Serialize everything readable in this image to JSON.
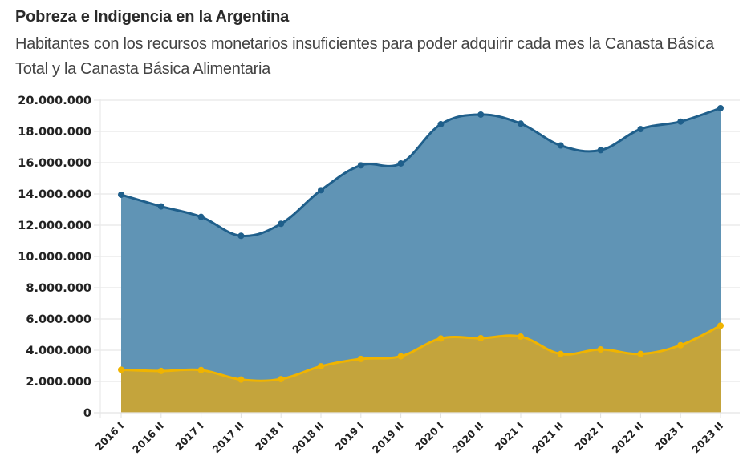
{
  "chart_data": {
    "type": "area",
    "title": "Pobreza e Indigencia en la Argentina",
    "subtitle": "Habitantes con los recursos monetarios insuficientes para poder adquirir cada mes la Canasta Básica Total y la Canasta Básica Alimentaria",
    "xlabel": "",
    "ylabel": "",
    "ylim": [
      0,
      20000000
    ],
    "yticks": [
      0,
      2000000,
      4000000,
      6000000,
      8000000,
      10000000,
      12000000,
      14000000,
      16000000,
      18000000,
      20000000
    ],
    "ytick_labels": [
      "0",
      "2.000.000",
      "4.000.000",
      "6.000.000",
      "8.000.000",
      "10.000.000",
      "12.000.000",
      "14.000.000",
      "16.000.000",
      "18.000.000",
      "20.000.000"
    ],
    "grid": true,
    "legend": "none",
    "categories": [
      "2016 I",
      "2016 II",
      "2017 I",
      "2017 II",
      "2018 I",
      "2018 II",
      "2019 I",
      "2019 II",
      "2020 I",
      "2020 II",
      "2021 I",
      "2021 II",
      "2022 I",
      "2022 II",
      "2023 I",
      "2023 II"
    ],
    "series": [
      {
        "name": "Pobreza",
        "color": "#1f5f8b",
        "fill": "#6094b5",
        "values": [
          13950000,
          13200000,
          12530000,
          11320000,
          12090000,
          14240000,
          15830000,
          15950000,
          18460000,
          19080000,
          18500000,
          17100000,
          16800000,
          18150000,
          18630000,
          19490000
        ]
      },
      {
        "name": "Indigencia",
        "color": "#f0b400",
        "fill": "#c4a43c",
        "values": [
          2750000,
          2670000,
          2730000,
          2120000,
          2150000,
          2970000,
          3440000,
          3610000,
          4750000,
          4770000,
          4870000,
          3760000,
          4050000,
          3760000,
          4320000,
          5570000
        ]
      }
    ]
  }
}
